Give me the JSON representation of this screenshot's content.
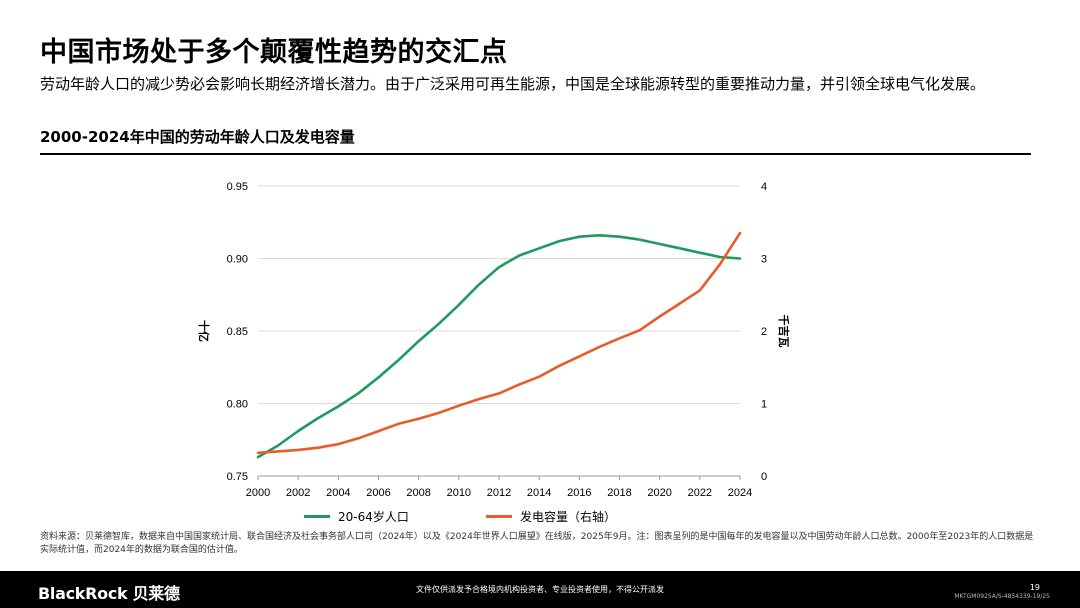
{
  "header": {
    "title": "中国市场处于多个颠覆性趋势的交汇点",
    "subtitle": "劳动年龄人口的减少势必会影响长期经济增长潜力。由于广泛采用可再生能源，中国是全球能源转型的重要推动力量，并引领全球电气化发展。",
    "chart_title": "2000-2024年中国的劳动年龄人口及发电容量"
  },
  "chart_data": {
    "type": "line",
    "title": "2000-2024年中国的劳动年龄人口及发电容量",
    "xlabel": "",
    "ylabel_left": "十亿",
    "ylabel_right": "千吉瓦",
    "xlim": [
      2000,
      2024
    ],
    "x_ticks": [
      "2000",
      "2002",
      "2004",
      "2006",
      "2008",
      "2010",
      "2012",
      "2014",
      "2016",
      "2018",
      "2020",
      "2022",
      "2024"
    ],
    "ylim_left": [
      0.75,
      0.95
    ],
    "y_ticks_left": [
      "0.75",
      "0.80",
      "0.85",
      "0.90",
      "0.95"
    ],
    "ylim_right": [
      0,
      4
    ],
    "y_ticks_right": [
      "0",
      "1",
      "2",
      "3",
      "4"
    ],
    "grid": "horizontal",
    "series": [
      {
        "name": "20-64岁人口",
        "axis": "left",
        "color": "#1f9a5c",
        "x": [
          2000,
          2001,
          2002,
          2003,
          2004,
          2005,
          2006,
          2007,
          2008,
          2009,
          2010,
          2011,
          2012,
          2013,
          2014,
          2015,
          2016,
          2017,
          2018,
          2019,
          2020,
          2021,
          2022,
          2023,
          2024
        ],
        "values": [
          0.763,
          0.771,
          0.781,
          0.79,
          0.798,
          0.807,
          0.818,
          0.83,
          0.843,
          0.855,
          0.868,
          0.882,
          0.894,
          0.902,
          0.907,
          0.912,
          0.915,
          0.916,
          0.915,
          0.913,
          0.91,
          0.907,
          0.904,
          0.901,
          0.9
        ]
      },
      {
        "name": "发电容量（右轴）",
        "axis": "right",
        "color": "#ea5b2b",
        "x": [
          2000,
          2001,
          2002,
          2003,
          2004,
          2005,
          2006,
          2007,
          2008,
          2009,
          2010,
          2011,
          2012,
          2013,
          2014,
          2015,
          2016,
          2017,
          2018,
          2019,
          2020,
          2021,
          2022,
          2023,
          2024
        ],
        "values": [
          0.32,
          0.34,
          0.36,
          0.39,
          0.44,
          0.52,
          0.62,
          0.72,
          0.79,
          0.87,
          0.97,
          1.06,
          1.14,
          1.26,
          1.37,
          1.52,
          1.65,
          1.78,
          1.9,
          2.01,
          2.2,
          2.38,
          2.56,
          2.92,
          3.35
        ]
      }
    ]
  },
  "source_note": "资料来源：贝莱德智库，数据来自中国国家统计局、联合国经济及社会事务部人口司（2024年）以及《2024年世界人口展望》在线版，2025年9月。注：图表呈列的是中国每年的发电容量以及中国劳动年龄人口总数。2000年至2023年的人口数据是实际统计值，而2024年的数据为联合国的估计值。",
  "footer": {
    "brand": "BlackRock 贝莱德",
    "disclaimer": "文件仅供派发予合格境内机构投资者、专业投资者使用，不得公开派发",
    "page_number": "19",
    "doc_code": "MKTGM0925A/S-4854339-19/25"
  }
}
